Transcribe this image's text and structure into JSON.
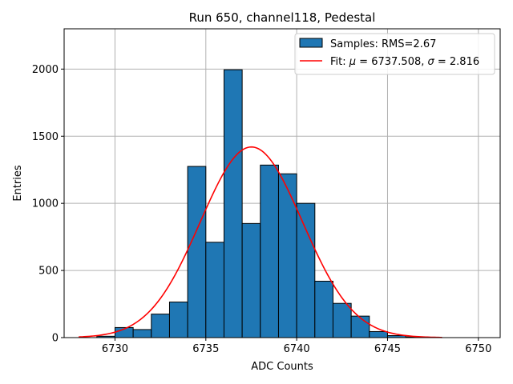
{
  "chart_data": {
    "type": "histogram",
    "title": "Run 650, channel118, Pedestal",
    "xlabel": "ADC Counts",
    "ylabel": "Entries",
    "xlim": [
      6727.2,
      6751.2
    ],
    "ylim": [
      0,
      2300
    ],
    "xticks": [
      6730,
      6735,
      6740,
      6745,
      6750
    ],
    "yticks": [
      0,
      500,
      1000,
      1500,
      2000
    ],
    "xtick_labels": [
      "6730",
      "6735",
      "6740",
      "6745",
      "6750"
    ],
    "ytick_labels": [
      "0",
      "500",
      "1000",
      "1500",
      "2000"
    ],
    "grid": true,
    "bar_color": "#1f77b4",
    "bar_edge_color": "#000000",
    "fit_color": "#ff0000",
    "bins": [
      {
        "x0": 6729.0,
        "x1": 6730.0,
        "value": 10
      },
      {
        "x0": 6730.0,
        "x1": 6731.0,
        "value": 75
      },
      {
        "x0": 6731.0,
        "x1": 6732.0,
        "value": 60
      },
      {
        "x0": 6732.0,
        "x1": 6733.0,
        "value": 175
      },
      {
        "x0": 6733.0,
        "x1": 6734.0,
        "value": 265
      },
      {
        "x0": 6734.0,
        "x1": 6735.0,
        "value": 1275
      },
      {
        "x0": 6735.0,
        "x1": 6736.0,
        "value": 710
      },
      {
        "x0": 6736.0,
        "x1": 6737.0,
        "value": 1995
      },
      {
        "x0": 6737.0,
        "x1": 6738.0,
        "value": 850
      },
      {
        "x0": 6738.0,
        "x1": 6739.0,
        "value": 1285
      },
      {
        "x0": 6739.0,
        "x1": 6740.0,
        "value": 1220
      },
      {
        "x0": 6740.0,
        "x1": 6741.0,
        "value": 1000
      },
      {
        "x0": 6741.0,
        "x1": 6742.0,
        "value": 420
      },
      {
        "x0": 6742.0,
        "x1": 6743.0,
        "value": 255
      },
      {
        "x0": 6743.0,
        "x1": 6744.0,
        "value": 160
      },
      {
        "x0": 6744.0,
        "x1": 6745.0,
        "value": 45
      },
      {
        "x0": 6745.0,
        "x1": 6746.0,
        "value": 15
      },
      {
        "x0": 6746.0,
        "x1": 6747.0,
        "value": 5
      }
    ],
    "fit": {
      "mu": 6737.508,
      "sigma": 2.816,
      "amplitude": 1420,
      "x_range": [
        6728.0,
        6748.0
      ]
    },
    "legend": {
      "placement": "top-right",
      "samples_label": "Samples: RMS=2.67",
      "fit_label_prefix": "Fit: ",
      "mu_symbol": "μ",
      "mu_text": " = 6737.508, ",
      "sigma_symbol": "σ",
      "sigma_text": " = 2.816"
    }
  }
}
